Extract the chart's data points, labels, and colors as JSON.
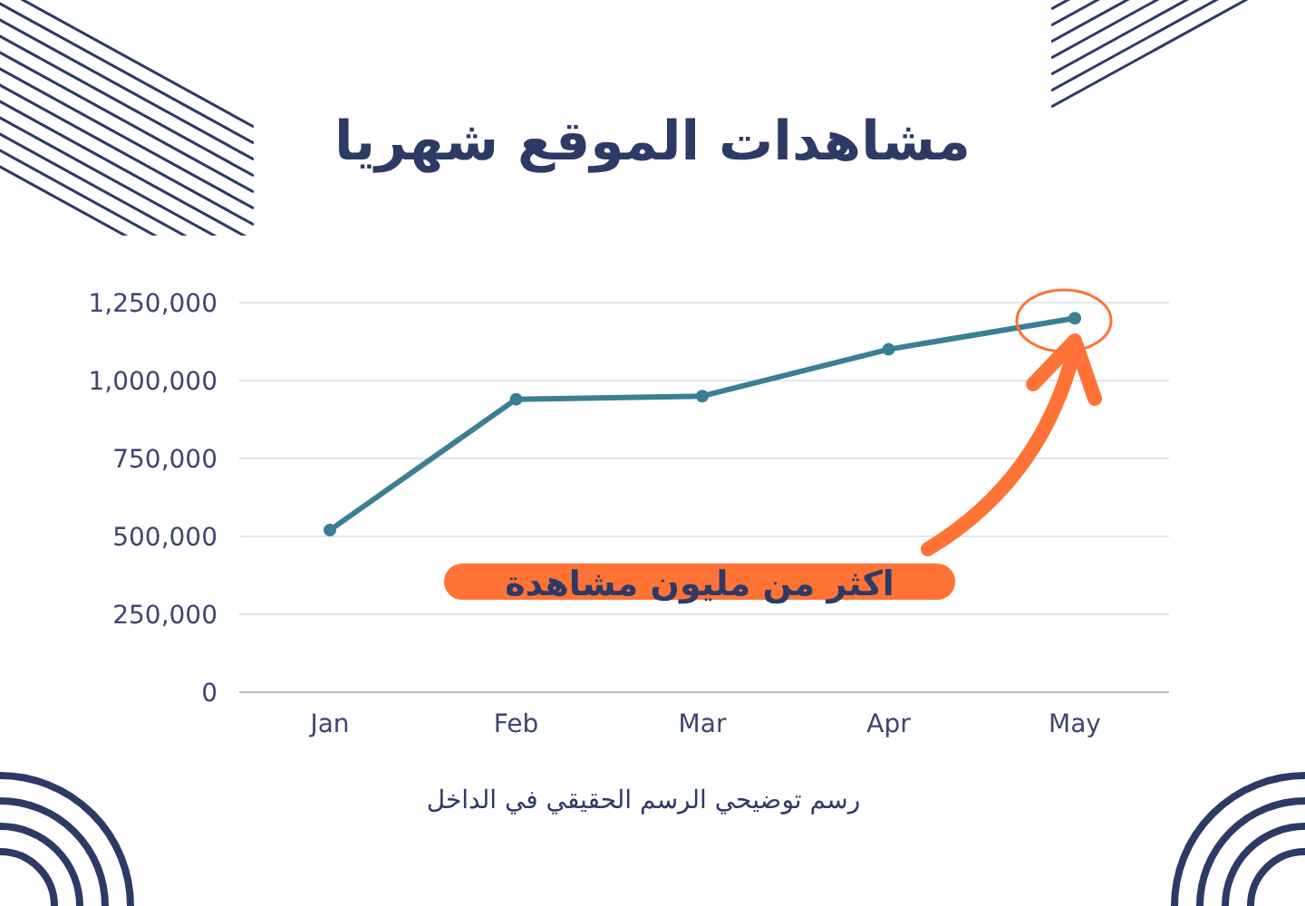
{
  "chart_data": {
    "type": "line",
    "title": "مشاهدات الموقع شهريا",
    "categories": [
      "Jan",
      "Feb",
      "Mar",
      "Apr",
      "May"
    ],
    "series": [
      {
        "color": "#3b7f94",
        "values": [
          520000,
          940000,
          950000,
          1100000,
          1200000
        ]
      }
    ],
    "ylim": [
      0,
      1250000
    ],
    "yticks": [
      {
        "value": 0,
        "label": "0"
      },
      {
        "value": 250000,
        "label": "250,000"
      },
      {
        "value": 500000,
        "label": "500,000"
      },
      {
        "value": 750000,
        "label": "750,000"
      },
      {
        "value": 1000000,
        "label": "1,000,000"
      },
      {
        "value": 1250000,
        "label": "1,250,000"
      }
    ],
    "grid": "y",
    "marker": "circle",
    "line_style": "solid",
    "annotations": [
      "اكثر من مليون مشاهدة",
      "رسم توضيحي الرسم الحقيقي في الداخل"
    ]
  }
}
